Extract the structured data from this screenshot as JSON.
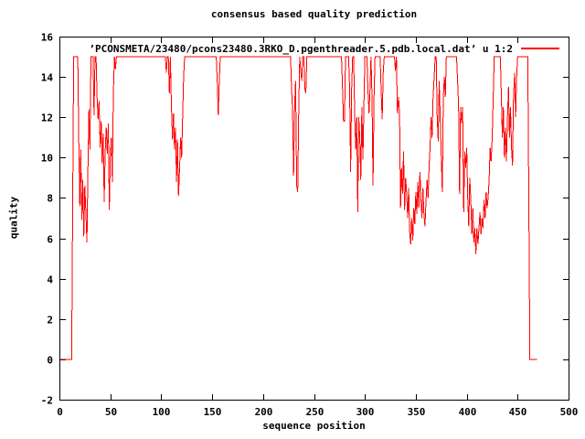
{
  "chart_data": {
    "type": "line",
    "title": "consensus based quality prediction",
    "xlabel": "sequence position",
    "ylabel": "quality",
    "xlim": [
      0,
      500
    ],
    "ylim": [
      -2,
      16
    ],
    "xticks": [
      0,
      50,
      100,
      150,
      200,
      250,
      300,
      350,
      400,
      450,
      500
    ],
    "yticks": [
      -2,
      0,
      2,
      4,
      6,
      8,
      10,
      12,
      14,
      16
    ],
    "grid": false,
    "legend_position": "top-right-inside",
    "series": [
      {
        "name": "’PCONSMETA/23480/pcons23480.3RKO_D.pgenthreader.5.pdb.local.dat’ u 1:2",
        "color": "#ff0000",
        "points": [
          [
            1,
            0
          ],
          [
            12,
            0
          ],
          [
            13,
            7.5
          ],
          [
            14,
            15
          ],
          [
            18,
            15
          ],
          [
            19,
            10.9
          ],
          [
            20,
            7.6
          ],
          [
            21,
            10.4
          ],
          [
            22,
            6.9
          ],
          [
            23,
            8.9
          ],
          [
            24,
            6.1
          ],
          [
            25,
            8.6
          ],
          [
            26,
            7.2
          ],
          [
            27,
            5.8
          ],
          [
            28,
            9.4
          ],
          [
            29,
            12.4
          ],
          [
            30,
            10.4
          ],
          [
            31,
            15
          ],
          [
            33,
            15
          ],
          [
            34,
            12.1
          ],
          [
            35,
            15
          ],
          [
            36,
            15
          ],
          [
            37,
            13
          ],
          [
            38,
            11.9
          ],
          [
            39,
            12.8
          ],
          [
            40,
            10.5
          ],
          [
            41,
            11.8
          ],
          [
            42,
            9.7
          ],
          [
            43,
            11.2
          ],
          [
            44,
            7.8
          ],
          [
            45,
            10.3
          ],
          [
            46,
            11.5
          ],
          [
            47,
            10.2
          ],
          [
            48,
            11.7
          ],
          [
            49,
            7.4
          ],
          [
            50,
            10
          ],
          [
            51,
            11
          ],
          [
            52,
            8.8
          ],
          [
            53,
            13.2
          ],
          [
            54,
            15
          ],
          [
            55,
            14.4
          ],
          [
            56,
            15
          ],
          [
            104,
            15
          ],
          [
            105,
            14.2
          ],
          [
            106,
            15
          ],
          [
            107,
            15
          ],
          [
            108,
            13.2
          ],
          [
            109,
            15
          ],
          [
            110,
            12.6
          ],
          [
            111,
            10.9
          ],
          [
            112,
            12.2
          ],
          [
            113,
            10.4
          ],
          [
            114,
            11.5
          ],
          [
            115,
            8.8
          ],
          [
            116,
            10.9
          ],
          [
            117,
            8.1
          ],
          [
            118,
            9.5
          ],
          [
            119,
            11
          ],
          [
            120,
            10
          ],
          [
            121,
            12
          ],
          [
            122,
            14
          ],
          [
            123,
            15
          ],
          [
            154,
            15
          ],
          [
            155,
            13.8
          ],
          [
            156,
            12.1
          ],
          [
            157,
            13.8
          ],
          [
            158,
            15
          ],
          [
            227,
            15
          ],
          [
            228,
            13.4
          ],
          [
            229,
            12.3
          ],
          [
            230,
            9.1
          ],
          [
            231,
            12.5
          ],
          [
            232,
            13.8
          ],
          [
            233,
            8.6
          ],
          [
            234,
            8.3
          ],
          [
            235,
            12.3
          ],
          [
            236,
            15
          ],
          [
            237,
            14.3
          ],
          [
            238,
            13.8
          ],
          [
            239,
            15
          ],
          [
            240,
            15
          ],
          [
            241,
            13.4
          ],
          [
            242,
            13.2
          ],
          [
            243,
            15
          ],
          [
            277,
            15
          ],
          [
            278,
            13.5
          ],
          [
            279,
            11.8
          ],
          [
            280,
            11.8
          ],
          [
            281,
            15
          ],
          [
            284,
            15
          ],
          [
            285,
            13.4
          ],
          [
            286,
            9.3
          ],
          [
            287,
            13.4
          ],
          [
            288,
            15
          ],
          [
            289,
            15
          ],
          [
            290,
            12
          ],
          [
            291,
            10.4
          ],
          [
            292,
            12
          ],
          [
            293,
            7.3
          ],
          [
            294,
            12
          ],
          [
            295,
            11
          ],
          [
            296,
            8.9
          ],
          [
            297,
            12.5
          ],
          [
            298,
            9.9
          ],
          [
            299,
            12.5
          ],
          [
            300,
            15
          ],
          [
            302,
            15
          ],
          [
            303,
            13.4
          ],
          [
            304,
            12.2
          ],
          [
            305,
            13.4
          ],
          [
            306,
            15
          ],
          [
            307,
            13
          ],
          [
            308,
            8.6
          ],
          [
            309,
            13
          ],
          [
            310,
            15
          ],
          [
            315,
            15
          ],
          [
            316,
            13.3
          ],
          [
            317,
            11.9
          ],
          [
            318,
            14.3
          ],
          [
            319,
            15
          ],
          [
            329,
            15
          ],
          [
            330,
            14.3
          ],
          [
            331,
            15
          ],
          [
            332,
            12.2
          ],
          [
            333,
            13
          ],
          [
            334,
            12.2
          ],
          [
            335,
            7.5
          ],
          [
            336,
            9.5
          ],
          [
            337,
            8.2
          ],
          [
            338,
            10.3
          ],
          [
            339,
            7.4
          ],
          [
            340,
            9
          ],
          [
            341,
            8.2
          ],
          [
            342,
            7
          ],
          [
            343,
            8.5
          ],
          [
            344,
            6.3
          ],
          [
            345,
            5.7
          ],
          [
            346,
            7
          ],
          [
            347,
            5.9
          ],
          [
            348,
            7.5
          ],
          [
            349,
            6.7
          ],
          [
            350,
            8.3
          ],
          [
            351,
            7.2
          ],
          [
            352,
            8.8
          ],
          [
            353,
            7.5
          ],
          [
            354,
            9.3
          ],
          [
            355,
            8
          ],
          [
            356,
            7
          ],
          [
            357,
            8.5
          ],
          [
            358,
            7.2
          ],
          [
            359,
            6.6
          ],
          [
            360,
            7.8
          ],
          [
            361,
            8.9
          ],
          [
            362,
            8
          ],
          [
            363,
            9.5
          ],
          [
            364,
            10.5
          ],
          [
            365,
            12
          ],
          [
            366,
            11
          ],
          [
            367,
            13
          ],
          [
            368,
            14
          ],
          [
            369,
            15
          ],
          [
            370,
            15
          ],
          [
            371,
            12
          ],
          [
            372,
            10.8
          ],
          [
            373,
            13.8
          ],
          [
            374,
            12
          ],
          [
            375,
            10
          ],
          [
            376,
            8.3
          ],
          [
            377,
            13
          ],
          [
            378,
            14
          ],
          [
            379,
            13
          ],
          [
            380,
            15
          ],
          [
            390,
            15
          ],
          [
            391,
            13.8
          ],
          [
            392,
            12.5
          ],
          [
            393,
            8.2
          ],
          [
            394,
            12.5
          ],
          [
            395,
            11.7
          ],
          [
            396,
            12.5
          ],
          [
            397,
            7.3
          ],
          [
            398,
            10.3
          ],
          [
            399,
            9.5
          ],
          [
            400,
            10.5
          ],
          [
            401,
            8
          ],
          [
            402,
            6.6
          ],
          [
            403,
            9
          ],
          [
            404,
            7.9
          ],
          [
            405,
            6.2
          ],
          [
            406,
            7.5
          ],
          [
            407,
            5.8
          ],
          [
            408,
            6.5
          ],
          [
            409,
            5.2
          ],
          [
            410,
            6.5
          ],
          [
            411,
            5.7
          ],
          [
            412,
            6.5
          ],
          [
            413,
            7.3
          ],
          [
            414,
            6.2
          ],
          [
            415,
            7
          ],
          [
            416,
            6.5
          ],
          [
            417,
            7.9
          ],
          [
            418,
            7
          ],
          [
            419,
            8.3
          ],
          [
            420,
            7.5
          ],
          [
            421,
            8
          ],
          [
            422,
            8.9
          ],
          [
            423,
            10.5
          ],
          [
            424,
            9.8
          ],
          [
            425,
            11
          ],
          [
            426,
            13
          ],
          [
            427,
            15
          ],
          [
            433,
            15
          ],
          [
            434,
            13
          ],
          [
            435,
            11
          ],
          [
            436,
            12.5
          ],
          [
            437,
            10
          ],
          [
            438,
            11.5
          ],
          [
            439,
            9.8
          ],
          [
            440,
            12
          ],
          [
            441,
            13.5
          ],
          [
            442,
            11
          ],
          [
            443,
            12.5
          ],
          [
            444,
            10.5
          ],
          [
            445,
            9.6
          ],
          [
            446,
            13
          ],
          [
            447,
            14.2
          ],
          [
            448,
            12
          ],
          [
            449,
            14
          ],
          [
            450,
            15
          ],
          [
            460,
            15
          ],
          [
            461,
            7.4
          ],
          [
            462,
            0
          ],
          [
            469,
            0
          ]
        ]
      }
    ]
  },
  "colors": {
    "line": "#ff0000",
    "text": "#000000",
    "background": "#ffffff"
  }
}
